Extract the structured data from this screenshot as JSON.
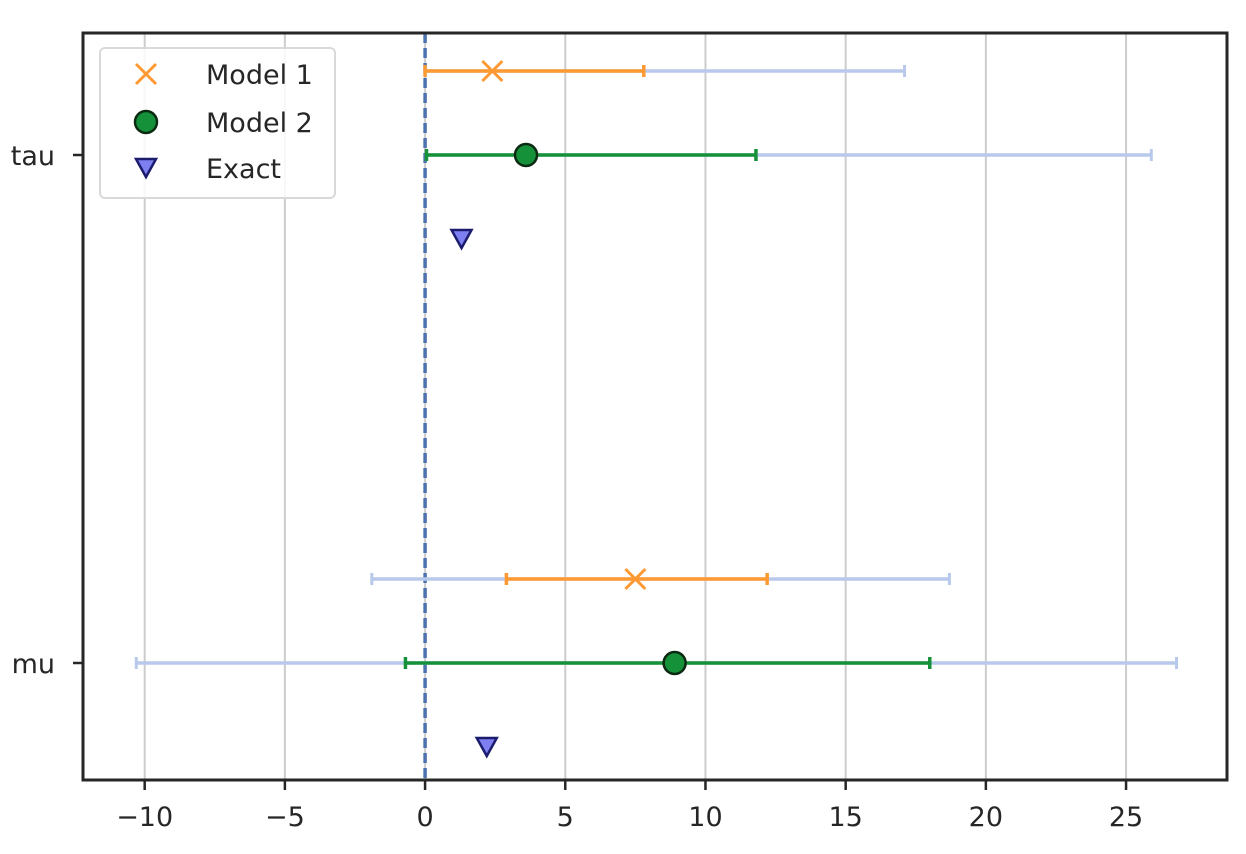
{
  "chart_data": {
    "type": "forest",
    "title": "",
    "xlabel": "",
    "ylabel": "",
    "xlim": [
      -12.2,
      28.6
    ],
    "xticks": [
      -10,
      -5,
      0,
      5,
      10,
      15,
      20,
      25
    ],
    "xtick_labels": [
      "−10",
      "−5",
      "0",
      "5",
      "10",
      "15",
      "20",
      "25"
    ],
    "grid": "vertical",
    "reference_line": {
      "x": 0,
      "style": "dashed",
      "color": "#4C72B0"
    },
    "parameters": [
      "tau",
      "mu"
    ],
    "series": [
      {
        "name": "Model 1",
        "marker": "x",
        "color": "#FF9933",
        "wide_color": "#B8C9EC",
        "points": [
          {
            "parameter": "tau",
            "estimate": 2.4,
            "inner": [
              0.0,
              7.8
            ],
            "outer": [
              0.0,
              17.1
            ]
          },
          {
            "parameter": "mu",
            "estimate": 7.5,
            "inner": [
              2.9,
              12.2
            ],
            "outer": [
              -1.9,
              18.7
            ]
          }
        ]
      },
      {
        "name": "Model 2",
        "marker": "o",
        "color": "#15913A",
        "wide_color": "#B8C9EC",
        "points": [
          {
            "parameter": "tau",
            "estimate": 3.6,
            "inner": [
              0.05,
              11.8
            ],
            "outer": [
              0.05,
              25.9
            ]
          },
          {
            "parameter": "mu",
            "estimate": 8.9,
            "inner": [
              -0.7,
              18.0
            ],
            "outer": [
              -10.3,
              26.8
            ]
          }
        ]
      },
      {
        "name": "Exact",
        "marker": "v",
        "color": "#7E80F2",
        "points": [
          {
            "parameter": "tau",
            "estimate": 1.3
          },
          {
            "parameter": "mu",
            "estimate": 2.2
          }
        ]
      }
    ],
    "legend": {
      "position": "upper-left",
      "entries": [
        "Model 1",
        "Model 2",
        "Exact"
      ]
    }
  }
}
